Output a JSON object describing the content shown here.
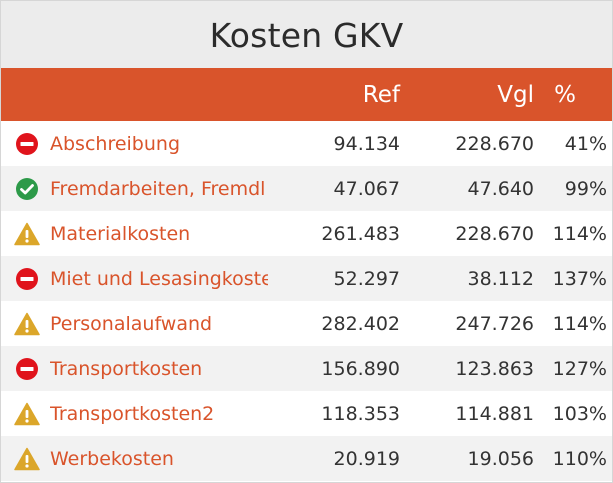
{
  "title": "Kosten GKV",
  "colors": {
    "header_bg": "#d9542b",
    "name_text": "#d9542b",
    "status_bad": "#e0141c",
    "status_ok": "#2d9a49",
    "status_warn": "#dba62a"
  },
  "columns": {
    "name": "",
    "ref": "Ref",
    "vgl": "Vgl",
    "pct": "%"
  },
  "rows": [
    {
      "status": "stop-icon",
      "name": "Abschreibung",
      "ref": "94.134",
      "vgl": "228.670",
      "pct": "41%"
    },
    {
      "status": "check-icon",
      "name": "Fremdarbeiten, Fremdl",
      "ref": "47.067",
      "vgl": "47.640",
      "pct": "99%"
    },
    {
      "status": "warning-icon",
      "name": "Materialkosten",
      "ref": "261.483",
      "vgl": "228.670",
      "pct": "114%"
    },
    {
      "status": "stop-icon",
      "name": "Miet und Lesasingkoste",
      "ref": "52.297",
      "vgl": "38.112",
      "pct": "137%"
    },
    {
      "status": "warning-icon",
      "name": "Personalaufwand",
      "ref": "282.402",
      "vgl": "247.726",
      "pct": "114%"
    },
    {
      "status": "stop-icon",
      "name": "Transportkosten",
      "ref": "156.890",
      "vgl": "123.863",
      "pct": "127%"
    },
    {
      "status": "warning-icon",
      "name": "Transportkosten2",
      "ref": "118.353",
      "vgl": "114.881",
      "pct": "103%"
    },
    {
      "status": "warning-icon",
      "name": "Werbekosten",
      "ref": "20.919",
      "vgl": "19.056",
      "pct": "110%"
    }
  ]
}
